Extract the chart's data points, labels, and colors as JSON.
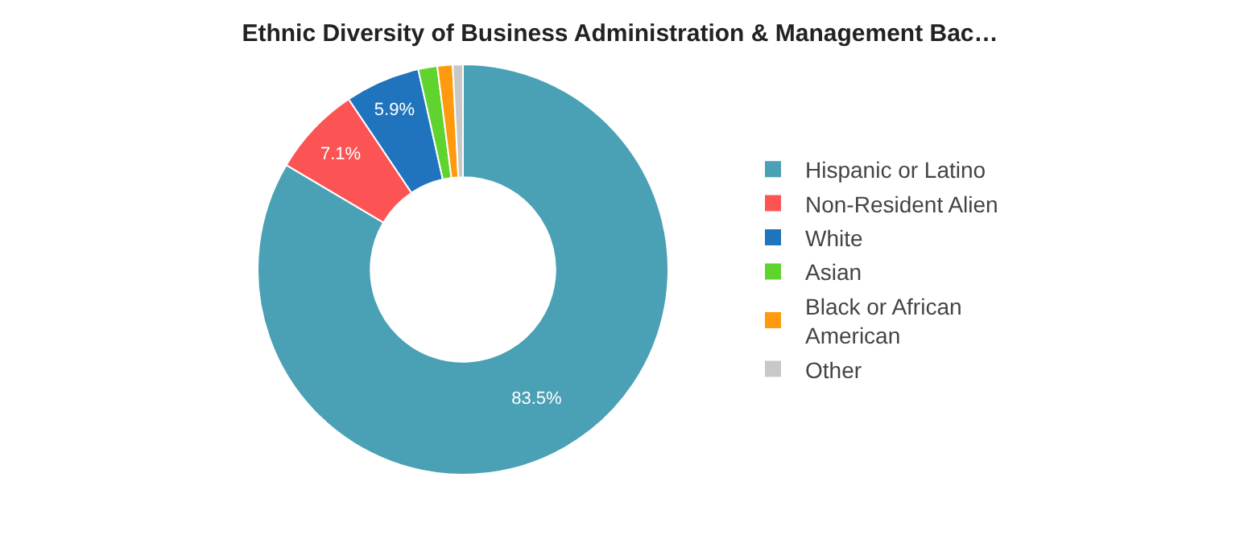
{
  "chart_data": {
    "type": "donut",
    "title": "Ethnic Diversity of Business Administration & Management Bac…",
    "categories": [
      "Hispanic or Latino",
      "Non-Resident Alien",
      "White",
      "Asian",
      "Black or African American",
      "Other"
    ],
    "values": [
      83.5,
      7.1,
      5.9,
      1.5,
      1.2,
      0.8
    ],
    "colors": [
      "#4aa0b5",
      "#fc5454",
      "#1f74bd",
      "#5fd32e",
      "#ff9a0f",
      "#c8c8c8"
    ],
    "value_labels": [
      "83.5%",
      "7.1%",
      "5.9%",
      null,
      null,
      null
    ],
    "legend": "right"
  }
}
